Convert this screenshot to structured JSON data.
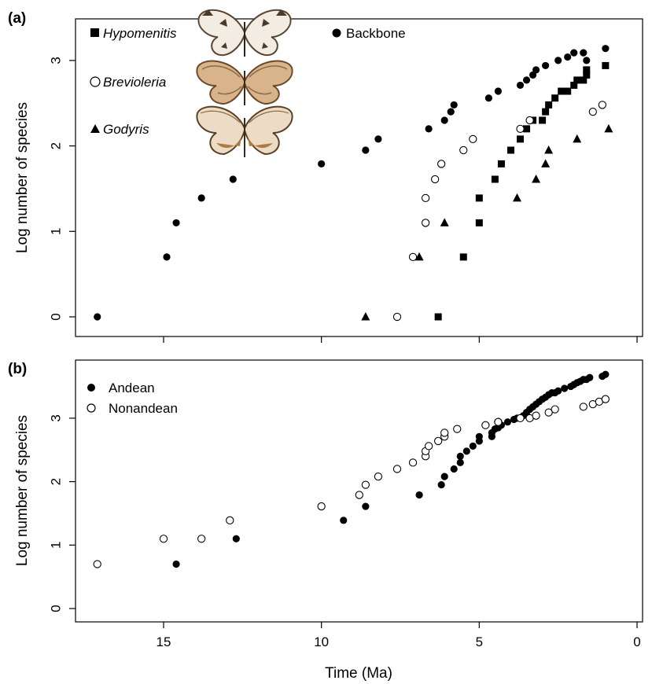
{
  "figure": {
    "xlabel": "Time (Ma)"
  },
  "chart_data": [
    {
      "panel": "(a)",
      "type": "scatter",
      "xlabel": "Time (Ma)",
      "ylabel": "Log number of species",
      "xlim": [
        18,
        -0.5
      ],
      "ylim": [
        -0.15,
        3.3
      ],
      "x_reversed": true,
      "xticks": [
        15,
        10,
        5,
        0
      ],
      "yticks": [
        0,
        1,
        2,
        3
      ],
      "xtick_labels_shown": false,
      "legend_placement": "top-left",
      "series": [
        {
          "name": "Hypomenitis",
          "marker": "filled-square",
          "x": [
            6.3,
            5.5,
            5.0,
            5.0,
            4.5,
            4.3,
            4.0,
            3.7,
            3.5,
            3.3,
            3.0,
            2.9,
            2.8,
            2.6,
            2.4,
            2.2,
            2.0,
            1.9,
            1.7,
            1.6,
            1.6,
            1.0
          ],
          "y": [
            0,
            0.7,
            1.1,
            1.39,
            1.61,
            1.79,
            1.95,
            2.08,
            2.2,
            2.3,
            2.3,
            2.4,
            2.48,
            2.56,
            2.64,
            2.64,
            2.71,
            2.77,
            2.77,
            2.83,
            2.89,
            2.94
          ]
        },
        {
          "name": "Brevioleria",
          "marker": "open-circle",
          "x": [
            7.6,
            7.1,
            6.7,
            6.7,
            6.4,
            6.2,
            5.5,
            5.2,
            3.7,
            3.4,
            1.4,
            1.1
          ],
          "y": [
            0,
            0.7,
            1.1,
            1.39,
            1.61,
            1.79,
            1.95,
            2.08,
            2.2,
            2.3,
            2.4,
            2.48
          ]
        },
        {
          "name": "Godyris",
          "marker": "filled-triangle",
          "x": [
            8.6,
            6.9,
            6.1,
            3.8,
            3.2,
            2.9,
            2.8,
            1.9,
            0.9
          ],
          "y": [
            0,
            0.7,
            1.1,
            1.39,
            1.61,
            1.79,
            1.95,
            2.08,
            2.2
          ]
        },
        {
          "name": "Backbone",
          "marker": "filled-circle",
          "x": [
            17.1,
            14.9,
            14.6,
            13.8,
            12.8,
            10.0,
            8.6,
            8.2,
            6.6,
            6.1,
            5.9,
            5.8,
            4.7,
            4.4,
            3.7,
            3.5,
            3.3,
            3.2,
            2.9,
            2.5,
            2.2,
            2.0,
            1.7,
            1.6,
            1.0
          ],
          "y": [
            0,
            0.7,
            1.1,
            1.39,
            1.61,
            1.79,
            1.95,
            2.08,
            2.2,
            2.3,
            2.4,
            2.48,
            2.56,
            2.64,
            2.71,
            2.77,
            2.83,
            2.89,
            2.94,
            3.0,
            3.04,
            3.09,
            3.09,
            3.0,
            3.14
          ]
        }
      ]
    },
    {
      "panel": "(b)",
      "type": "scatter",
      "xlabel": "Time (Ma)",
      "ylabel": "Log number of species",
      "xlim": [
        18,
        -0.5
      ],
      "ylim": [
        -0.15,
        3.9
      ],
      "x_reversed": true,
      "xticks": [
        15,
        10,
        5,
        0
      ],
      "yticks": [
        0,
        1,
        2,
        3
      ],
      "legend_placement": "top-left",
      "series": [
        {
          "name": "Andean",
          "marker": "filled-circle",
          "x": [
            14.6,
            12.7,
            9.3,
            8.6,
            6.9,
            6.2,
            6.1,
            5.8,
            5.6,
            5.6,
            5.4,
            5.2,
            5.0,
            5.0,
            4.6,
            4.6,
            4.5,
            4.4,
            4.3,
            4.1,
            3.9,
            3.8,
            3.6,
            3.5,
            3.4,
            3.3,
            3.2,
            3.1,
            3.0,
            2.9,
            2.8,
            2.7,
            2.6,
            2.5,
            2.3,
            2.1,
            2.0,
            1.9,
            1.8,
            1.7,
            1.6,
            1.5,
            1.1,
            1.0
          ],
          "y": [
            0.7,
            1.1,
            1.39,
            1.61,
            1.79,
            1.95,
            2.08,
            2.2,
            2.3,
            2.4,
            2.48,
            2.56,
            2.64,
            2.71,
            2.71,
            2.77,
            2.83,
            2.85,
            2.89,
            2.94,
            2.98,
            3.0,
            3.04,
            3.09,
            3.14,
            3.18,
            3.22,
            3.26,
            3.3,
            3.33,
            3.37,
            3.4,
            3.4,
            3.43,
            3.47,
            3.5,
            3.53,
            3.56,
            3.58,
            3.61,
            3.61,
            3.64,
            3.66,
            3.69
          ]
        },
        {
          "name": "Nonandean",
          "marker": "open-circle",
          "x": [
            17.1,
            15.0,
            13.8,
            12.9,
            10.0,
            8.8,
            8.6,
            8.2,
            7.6,
            7.1,
            6.7,
            6.7,
            6.6,
            6.3,
            6.1,
            6.1,
            5.7,
            4.8,
            4.4,
            4.4,
            3.7,
            3.4,
            3.2,
            2.8,
            2.6,
            1.7,
            1.4,
            1.2,
            1.0
          ],
          "y": [
            0.7,
            1.1,
            1.1,
            1.39,
            1.61,
            1.79,
            1.95,
            2.08,
            2.2,
            2.3,
            2.4,
            2.48,
            2.56,
            2.64,
            2.71,
            2.77,
            2.83,
            2.89,
            2.94,
            2.94,
            3.0,
            3.0,
            3.04,
            3.09,
            3.14,
            3.18,
            3.22,
            3.26,
            3.3
          ]
        }
      ]
    }
  ]
}
